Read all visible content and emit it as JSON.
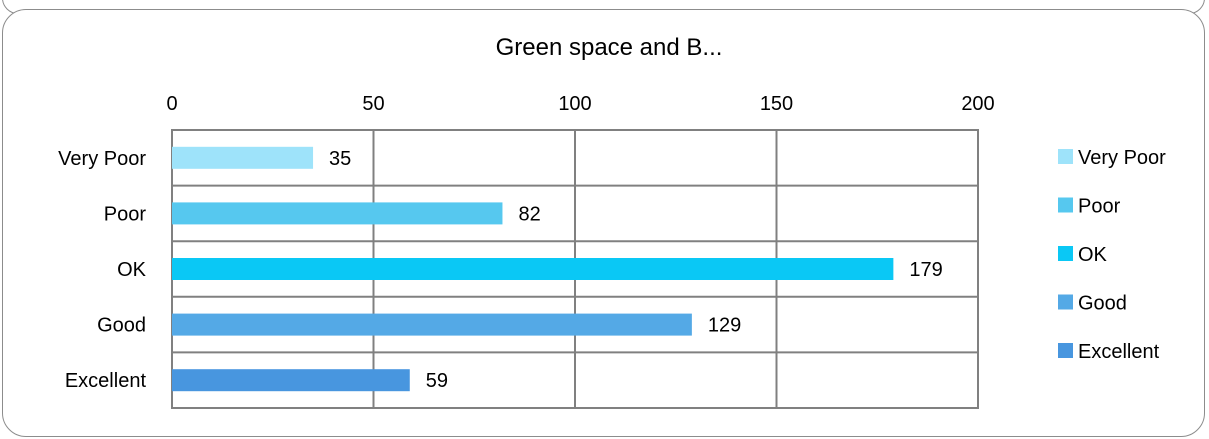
{
  "chart_data": {
    "type": "bar",
    "orientation": "horizontal",
    "title": "Green space and B...",
    "categories": [
      "Very Poor",
      "Poor",
      "OK",
      "Good",
      "Excellent"
    ],
    "values": [
      35,
      82,
      179,
      129,
      59
    ],
    "colors": [
      "#9ee3fa",
      "#56c8ef",
      "#0ac8f5",
      "#54a9e6",
      "#4896df"
    ],
    "xlim": [
      0,
      200
    ],
    "xticks": [
      "0",
      "50",
      "100",
      "150",
      "200"
    ],
    "xlabel": "",
    "ylabel": "",
    "grid": true,
    "legend_position": "right",
    "legend": [
      "Very Poor",
      "Poor",
      "OK",
      "Good",
      "Excellent"
    ]
  }
}
